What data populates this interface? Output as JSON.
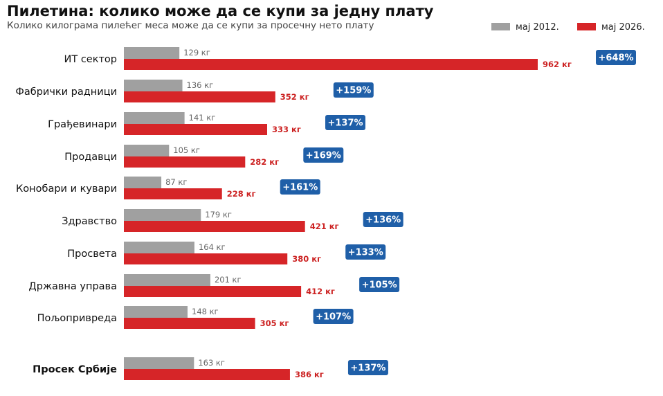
{
  "colors": {
    "old": "#a0a0a0",
    "new": "#d62528",
    "badge": "#1f5fa8",
    "label_new": "#cc2222",
    "label_old": "#666666"
  },
  "chart_data": {
    "type": "bar",
    "orientation": "horizontal",
    "title": "Пилетина: колико може да се купи за једну плату",
    "subtitle": "Колико килограма пилећег меса може да се купи за просечну нето плату",
    "xlabel": "",
    "ylabel": "",
    "xlim": [
      0,
      1000
    ],
    "grid": false,
    "legend_position": "top-right",
    "unit": "кг",
    "categories": [
      "ИТ сектор",
      "Фабрички радници",
      "Грађевинари",
      "Продавци",
      "Конобари и кувари",
      "Здравство",
      "Просвета",
      "Државна управа",
      "Пољопривреда",
      "Просек Србије"
    ],
    "emphasized_category": "Просек Србије",
    "series": [
      {
        "name": "мај 2012.",
        "values": [
          129,
          136,
          141,
          105,
          87,
          179,
          164,
          201,
          148,
          163
        ]
      },
      {
        "name": "мај 2026.",
        "values": [
          962,
          352,
          333,
          282,
          228,
          421,
          380,
          412,
          305,
          386
        ]
      }
    ],
    "value_labels": {
      "old": [
        "129 кг",
        "136 кг",
        "141 кг",
        "105 кг",
        "87 кг",
        "179 кг",
        "164 кг",
        "201 кг",
        "148 кг",
        "163 кг"
      ],
      "new": [
        "962 кг",
        "352 кг",
        "333 кг",
        "282 кг",
        "228 кг",
        "421 кг",
        "380 кг",
        "412 кг",
        "305 кг",
        "386 кг"
      ]
    },
    "change_labels": [
      "+648%",
      "+159%",
      "+137%",
      "+169%",
      "+161%",
      "+136%",
      "+133%",
      "+105%",
      "+107%",
      "+137%"
    ]
  }
}
